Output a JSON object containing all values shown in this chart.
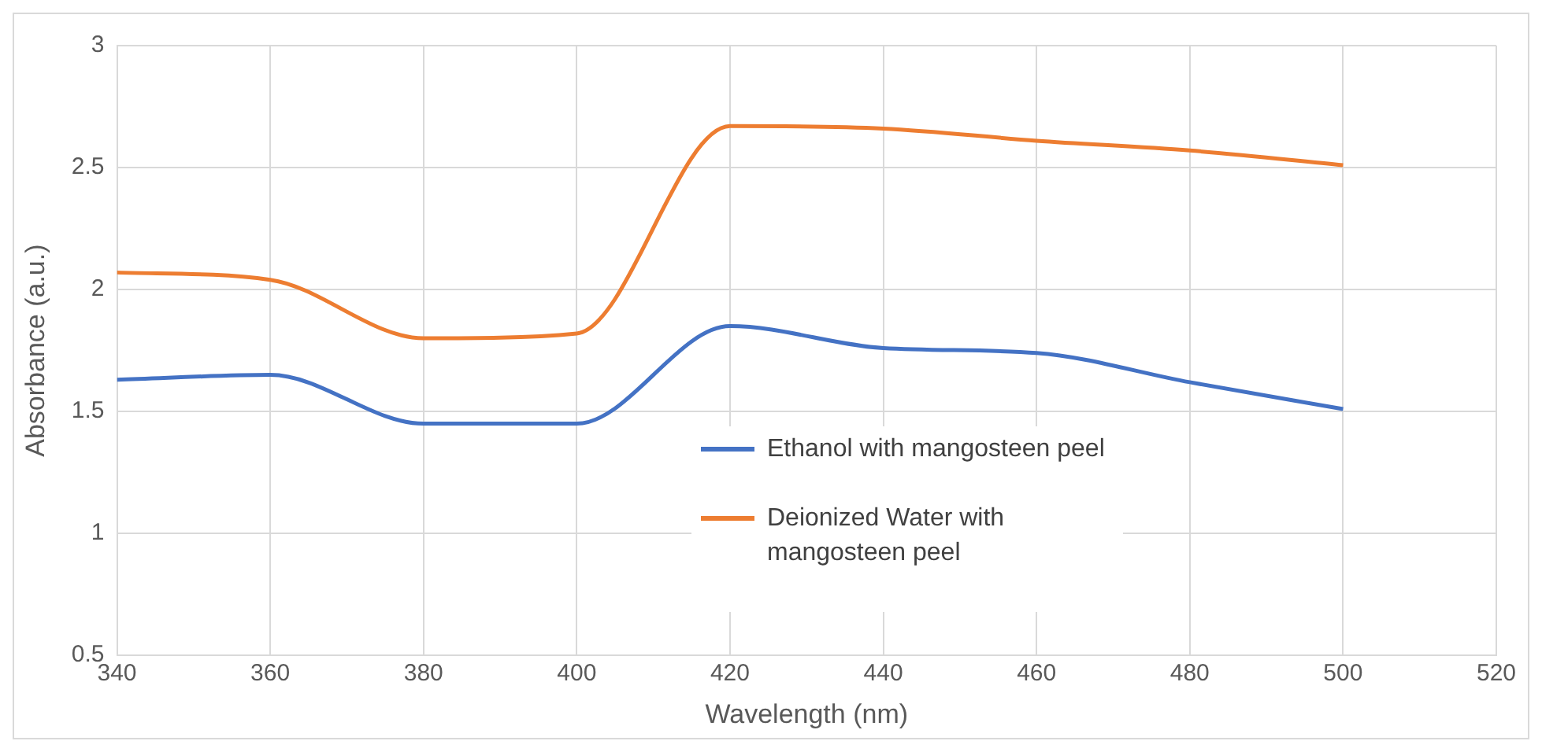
{
  "chart_data": {
    "type": "line",
    "xlabel": "Wavelength (nm)",
    "ylabel": "Absorbance (a.u.)",
    "x": [
      340,
      360,
      380,
      400,
      420,
      440,
      460,
      480,
      500
    ],
    "series": [
      {
        "name": "Ethanol with mangosteen peel",
        "color": "#4472c4",
        "values": [
          1.63,
          1.65,
          1.45,
          1.45,
          1.85,
          1.76,
          1.74,
          1.62,
          1.51
        ]
      },
      {
        "name": "Deionized Water with mangosteen peel",
        "color": "#ed7d31",
        "values": [
          2.07,
          2.04,
          1.8,
          1.82,
          2.67,
          2.66,
          2.61,
          2.57,
          2.51
        ]
      }
    ],
    "xlim": [
      340,
      520
    ],
    "xticks": [
      340,
      360,
      380,
      400,
      420,
      440,
      460,
      480,
      500,
      520
    ],
    "ylim": [
      0.5,
      3
    ],
    "yticks": [
      0.5,
      1,
      1.5,
      2,
      2.5,
      3
    ],
    "grid": true,
    "legend": "bottom",
    "marker": "none",
    "line_style": "solid"
  }
}
